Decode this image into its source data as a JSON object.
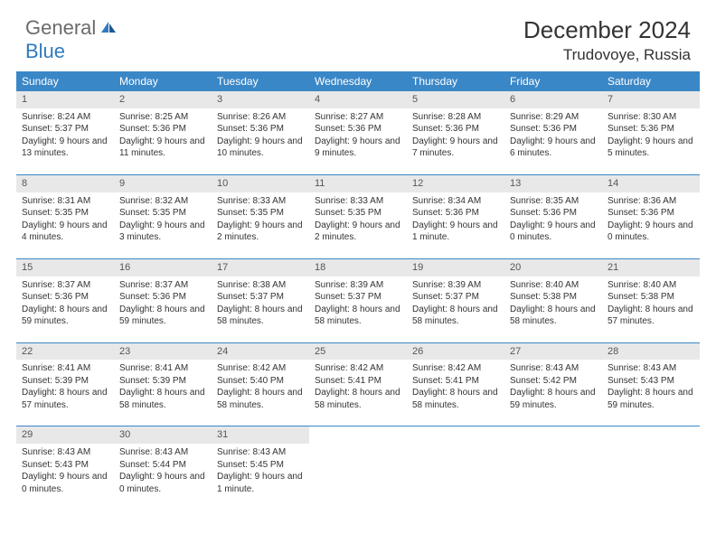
{
  "brand": {
    "part1": "General",
    "part2": "Blue"
  },
  "title": "December 2024",
  "location": "Trudovoye, Russia",
  "colors": {
    "header_bg": "#3a87c7",
    "daynum_bg": "#e8e8e8",
    "border": "#3a87c7",
    "logo_gray": "#6b6b6b",
    "logo_blue": "#2f7ac0",
    "text": "#333333",
    "background": "#ffffff"
  },
  "day_names": [
    "Sunday",
    "Monday",
    "Tuesday",
    "Wednesday",
    "Thursday",
    "Friday",
    "Saturday"
  ],
  "weeks": [
    [
      {
        "num": "1",
        "sunrise": "Sunrise: 8:24 AM",
        "sunset": "Sunset: 5:37 PM",
        "daylight": "Daylight: 9 hours and 13 minutes."
      },
      {
        "num": "2",
        "sunrise": "Sunrise: 8:25 AM",
        "sunset": "Sunset: 5:36 PM",
        "daylight": "Daylight: 9 hours and 11 minutes."
      },
      {
        "num": "3",
        "sunrise": "Sunrise: 8:26 AM",
        "sunset": "Sunset: 5:36 PM",
        "daylight": "Daylight: 9 hours and 10 minutes."
      },
      {
        "num": "4",
        "sunrise": "Sunrise: 8:27 AM",
        "sunset": "Sunset: 5:36 PM",
        "daylight": "Daylight: 9 hours and 9 minutes."
      },
      {
        "num": "5",
        "sunrise": "Sunrise: 8:28 AM",
        "sunset": "Sunset: 5:36 PM",
        "daylight": "Daylight: 9 hours and 7 minutes."
      },
      {
        "num": "6",
        "sunrise": "Sunrise: 8:29 AM",
        "sunset": "Sunset: 5:36 PM",
        "daylight": "Daylight: 9 hours and 6 minutes."
      },
      {
        "num": "7",
        "sunrise": "Sunrise: 8:30 AM",
        "sunset": "Sunset: 5:36 PM",
        "daylight": "Daylight: 9 hours and 5 minutes."
      }
    ],
    [
      {
        "num": "8",
        "sunrise": "Sunrise: 8:31 AM",
        "sunset": "Sunset: 5:35 PM",
        "daylight": "Daylight: 9 hours and 4 minutes."
      },
      {
        "num": "9",
        "sunrise": "Sunrise: 8:32 AM",
        "sunset": "Sunset: 5:35 PM",
        "daylight": "Daylight: 9 hours and 3 minutes."
      },
      {
        "num": "10",
        "sunrise": "Sunrise: 8:33 AM",
        "sunset": "Sunset: 5:35 PM",
        "daylight": "Daylight: 9 hours and 2 minutes."
      },
      {
        "num": "11",
        "sunrise": "Sunrise: 8:33 AM",
        "sunset": "Sunset: 5:35 PM",
        "daylight": "Daylight: 9 hours and 2 minutes."
      },
      {
        "num": "12",
        "sunrise": "Sunrise: 8:34 AM",
        "sunset": "Sunset: 5:36 PM",
        "daylight": "Daylight: 9 hours and 1 minute."
      },
      {
        "num": "13",
        "sunrise": "Sunrise: 8:35 AM",
        "sunset": "Sunset: 5:36 PM",
        "daylight": "Daylight: 9 hours and 0 minutes."
      },
      {
        "num": "14",
        "sunrise": "Sunrise: 8:36 AM",
        "sunset": "Sunset: 5:36 PM",
        "daylight": "Daylight: 9 hours and 0 minutes."
      }
    ],
    [
      {
        "num": "15",
        "sunrise": "Sunrise: 8:37 AM",
        "sunset": "Sunset: 5:36 PM",
        "daylight": "Daylight: 8 hours and 59 minutes."
      },
      {
        "num": "16",
        "sunrise": "Sunrise: 8:37 AM",
        "sunset": "Sunset: 5:36 PM",
        "daylight": "Daylight: 8 hours and 59 minutes."
      },
      {
        "num": "17",
        "sunrise": "Sunrise: 8:38 AM",
        "sunset": "Sunset: 5:37 PM",
        "daylight": "Daylight: 8 hours and 58 minutes."
      },
      {
        "num": "18",
        "sunrise": "Sunrise: 8:39 AM",
        "sunset": "Sunset: 5:37 PM",
        "daylight": "Daylight: 8 hours and 58 minutes."
      },
      {
        "num": "19",
        "sunrise": "Sunrise: 8:39 AM",
        "sunset": "Sunset: 5:37 PM",
        "daylight": "Daylight: 8 hours and 58 minutes."
      },
      {
        "num": "20",
        "sunrise": "Sunrise: 8:40 AM",
        "sunset": "Sunset: 5:38 PM",
        "daylight": "Daylight: 8 hours and 58 minutes."
      },
      {
        "num": "21",
        "sunrise": "Sunrise: 8:40 AM",
        "sunset": "Sunset: 5:38 PM",
        "daylight": "Daylight: 8 hours and 57 minutes."
      }
    ],
    [
      {
        "num": "22",
        "sunrise": "Sunrise: 8:41 AM",
        "sunset": "Sunset: 5:39 PM",
        "daylight": "Daylight: 8 hours and 57 minutes."
      },
      {
        "num": "23",
        "sunrise": "Sunrise: 8:41 AM",
        "sunset": "Sunset: 5:39 PM",
        "daylight": "Daylight: 8 hours and 58 minutes."
      },
      {
        "num": "24",
        "sunrise": "Sunrise: 8:42 AM",
        "sunset": "Sunset: 5:40 PM",
        "daylight": "Daylight: 8 hours and 58 minutes."
      },
      {
        "num": "25",
        "sunrise": "Sunrise: 8:42 AM",
        "sunset": "Sunset: 5:41 PM",
        "daylight": "Daylight: 8 hours and 58 minutes."
      },
      {
        "num": "26",
        "sunrise": "Sunrise: 8:42 AM",
        "sunset": "Sunset: 5:41 PM",
        "daylight": "Daylight: 8 hours and 58 minutes."
      },
      {
        "num": "27",
        "sunrise": "Sunrise: 8:43 AM",
        "sunset": "Sunset: 5:42 PM",
        "daylight": "Daylight: 8 hours and 59 minutes."
      },
      {
        "num": "28",
        "sunrise": "Sunrise: 8:43 AM",
        "sunset": "Sunset: 5:43 PM",
        "daylight": "Daylight: 8 hours and 59 minutes."
      }
    ],
    [
      {
        "num": "29",
        "sunrise": "Sunrise: 8:43 AM",
        "sunset": "Sunset: 5:43 PM",
        "daylight": "Daylight: 9 hours and 0 minutes."
      },
      {
        "num": "30",
        "sunrise": "Sunrise: 8:43 AM",
        "sunset": "Sunset: 5:44 PM",
        "daylight": "Daylight: 9 hours and 0 minutes."
      },
      {
        "num": "31",
        "sunrise": "Sunrise: 8:43 AM",
        "sunset": "Sunset: 5:45 PM",
        "daylight": "Daylight: 9 hours and 1 minute."
      },
      {
        "empty": true
      },
      {
        "empty": true
      },
      {
        "empty": true
      },
      {
        "empty": true
      }
    ]
  ]
}
